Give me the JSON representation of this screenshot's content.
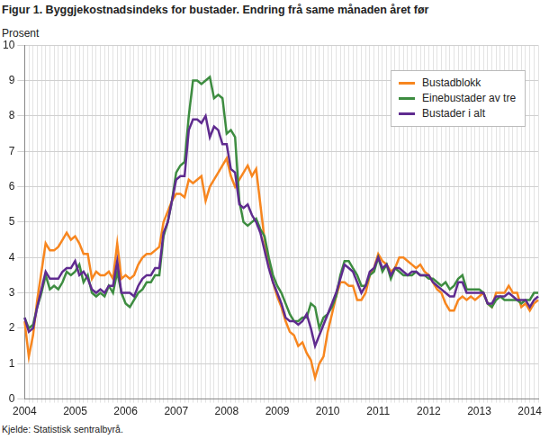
{
  "chart_data": {
    "type": "line",
    "title": "Figur 1. Byggjekostnadsindeks for bustader. Endring frå same månaden året før",
    "y_label": "Prosent",
    "source": "Kjelde: Statistisk sentralbyrå.",
    "categories": [
      "2004",
      null,
      null,
      null,
      null,
      null,
      null,
      null,
      null,
      null,
      null,
      null,
      "2005",
      null,
      null,
      null,
      null,
      null,
      null,
      null,
      null,
      null,
      null,
      null,
      "2006",
      null,
      null,
      null,
      null,
      null,
      null,
      null,
      null,
      null,
      null,
      null,
      "2007",
      null,
      null,
      null,
      null,
      null,
      null,
      null,
      null,
      null,
      null,
      null,
      "2008",
      null,
      null,
      null,
      null,
      null,
      null,
      null,
      null,
      null,
      null,
      null,
      "2009",
      null,
      null,
      null,
      null,
      null,
      null,
      null,
      null,
      null,
      null,
      null,
      "2010",
      null,
      null,
      null,
      null,
      null,
      null,
      null,
      null,
      null,
      null,
      null,
      "2011",
      null,
      null,
      null,
      null,
      null,
      null,
      null,
      null,
      null,
      null,
      null,
      "2012",
      null,
      null,
      null,
      null,
      null,
      null,
      null,
      null,
      null,
      null,
      null,
      "2013",
      null,
      null,
      null,
      null,
      null,
      null,
      null,
      null,
      null,
      null,
      null,
      "2014",
      null,
      null
    ],
    "series": [
      {
        "name": "Bustadblokk",
        "color": "#f7861f",
        "values": [
          2.2,
          1.2,
          1.8,
          2.8,
          3.6,
          4.4,
          4.2,
          4.2,
          4.3,
          4.5,
          4.7,
          4.5,
          4.6,
          4.4,
          4.1,
          4.1,
          3.4,
          3.6,
          3.5,
          3.5,
          3.6,
          3.4,
          4.4,
          3.4,
          3.5,
          3.4,
          3.5,
          3.8,
          4.0,
          4.1,
          4.1,
          4.2,
          4.3,
          5.0,
          5.3,
          5.6,
          5.8,
          5.8,
          5.7,
          6.2,
          6.1,
          6.2,
          6.3,
          5.6,
          6.0,
          6.2,
          6.4,
          6.6,
          6.8,
          6.3,
          6.0,
          6.2,
          6.4,
          6.6,
          6.3,
          6.5,
          5.5,
          4.5,
          3.8,
          3.3,
          2.9,
          2.6,
          2.2,
          1.9,
          1.8,
          1.5,
          1.6,
          1.3,
          1.1,
          0.6,
          1.0,
          1.2,
          1.9,
          2.4,
          2.9,
          3.3,
          3.3,
          3.2,
          3.2,
          2.8,
          2.8,
          3.0,
          3.5,
          3.7,
          4.1,
          3.9,
          3.8,
          3.6,
          3.7,
          4.0,
          4.0,
          3.9,
          3.8,
          3.7,
          3.8,
          3.6,
          3.5,
          3.3,
          3.1,
          3.0,
          2.7,
          2.5,
          2.5,
          2.8,
          2.9,
          2.8,
          2.9,
          2.8,
          2.9,
          3.0,
          2.7,
          2.6,
          3.0,
          3.0,
          3.0,
          3.2,
          3.0,
          3.0,
          2.6,
          2.7,
          2.5,
          2.7,
          2.8
        ]
      },
      {
        "name": "Einebustader av tre",
        "color": "#3d8c40",
        "values": [
          2.3,
          2.0,
          2.1,
          2.6,
          3.0,
          3.5,
          3.1,
          3.2,
          3.1,
          3.3,
          3.6,
          3.5,
          3.6,
          3.8,
          3.3,
          3.5,
          3.0,
          2.9,
          3.0,
          2.9,
          3.2,
          3.0,
          3.6,
          3.0,
          2.7,
          2.6,
          2.8,
          3.0,
          3.1,
          3.3,
          3.3,
          3.5,
          3.5,
          4.6,
          5.0,
          5.6,
          6.4,
          6.6,
          6.7,
          8.0,
          9.0,
          9.0,
          8.9,
          9.0,
          9.1,
          8.5,
          8.6,
          8.5,
          7.5,
          7.6,
          7.4,
          5.6,
          5.0,
          4.9,
          5.0,
          5.1,
          4.8,
          4.6,
          4.0,
          3.5,
          3.2,
          3.0,
          2.7,
          2.4,
          2.2,
          2.2,
          2.3,
          2.3,
          2.7,
          2.6,
          2.0,
          2.3,
          2.4,
          2.6,
          2.9,
          3.5,
          3.9,
          3.9,
          3.7,
          3.5,
          3.2,
          3.2,
          3.5,
          3.6,
          4.0,
          3.6,
          3.8,
          3.4,
          3.7,
          3.6,
          3.5,
          3.5,
          3.5,
          3.6,
          3.5,
          3.5,
          3.4,
          3.4,
          3.3,
          3.2,
          3.3,
          3.1,
          3.2,
          3.4,
          3.5,
          3.1,
          3.1,
          3.1,
          3.1,
          3.0,
          2.7,
          2.6,
          2.8,
          2.9,
          2.8,
          2.8,
          2.8,
          2.8,
          2.7,
          2.8,
          2.8,
          3.0,
          3.0
        ]
      },
      {
        "name": "Bustader i alt",
        "color": "#5f2b8f",
        "values": [
          2.3,
          1.9,
          2.0,
          2.6,
          3.1,
          3.6,
          3.4,
          3.4,
          3.4,
          3.6,
          3.7,
          3.7,
          3.9,
          3.5,
          3.6,
          3.4,
          3.1,
          3.0,
          3.1,
          3.0,
          3.2,
          3.2,
          3.9,
          3.0,
          3.0,
          3.0,
          2.9,
          3.2,
          3.4,
          3.5,
          3.5,
          3.7,
          3.7,
          4.7,
          5.0,
          5.6,
          6.2,
          6.3,
          6.3,
          7.6,
          7.9,
          7.9,
          7.8,
          8.0,
          7.4,
          7.7,
          7.6,
          7.2,
          7.2,
          6.5,
          6.4,
          5.5,
          5.4,
          5.5,
          5.2,
          5.0,
          4.7,
          4.2,
          3.7,
          3.3,
          3.0,
          2.7,
          2.3,
          2.2,
          2.2,
          2.1,
          2.2,
          2.4,
          2.0,
          1.5,
          1.8,
          2.1,
          2.4,
          2.7,
          3.0,
          3.4,
          3.8,
          3.7,
          3.6,
          3.3,
          3.0,
          3.2,
          3.6,
          3.7,
          4.0,
          3.7,
          3.8,
          3.5,
          3.7,
          3.7,
          3.6,
          3.5,
          3.6,
          3.6,
          3.5,
          3.5,
          3.5,
          3.3,
          3.2,
          3.1,
          3.0,
          2.9,
          2.9,
          3.3,
          3.3,
          3.0,
          3.0,
          3.0,
          3.0,
          3.0,
          2.7,
          2.7,
          2.9,
          2.9,
          2.9,
          3.0,
          2.9,
          2.8,
          2.8,
          2.8,
          2.6,
          2.8,
          2.9
        ]
      }
    ],
    "ylim": [
      0,
      10
    ],
    "yticks": [
      0,
      1,
      2,
      3,
      4,
      5,
      6,
      7,
      8,
      9,
      10
    ],
    "grid": true,
    "legend": "top right"
  }
}
